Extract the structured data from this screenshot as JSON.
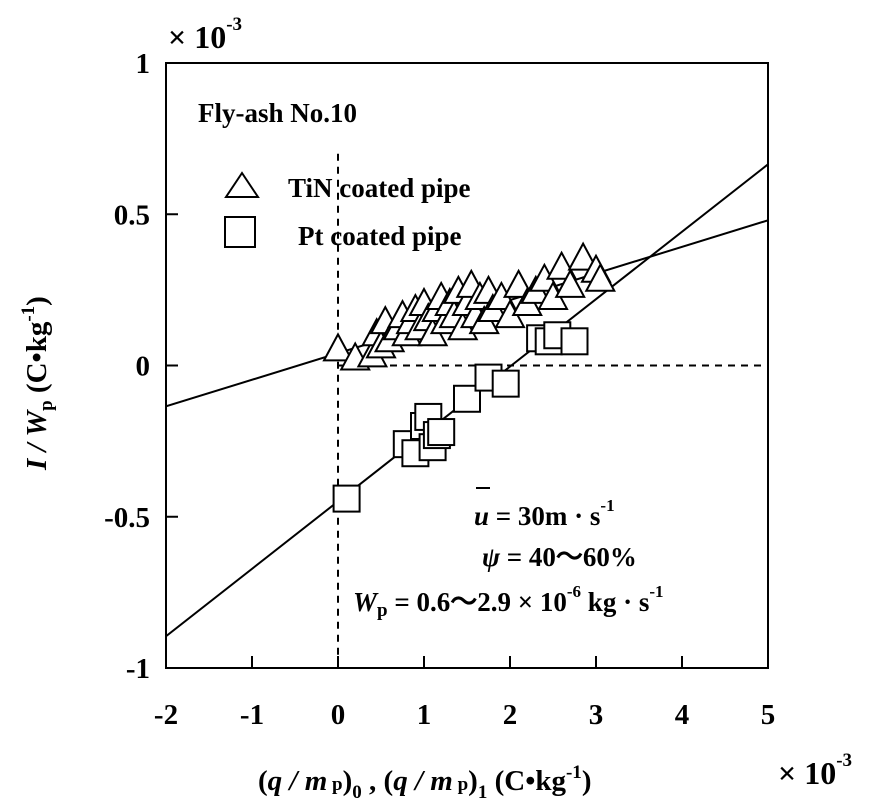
{
  "chart_data": {
    "type": "scatter",
    "annotation": "Fly-ash No.10",
    "xlabel": "(q / m p)0 ,  (q / m p)1    (C•kg-1)",
    "ylabel": "I / Wp   (C•kg-1)",
    "xlim": [
      -2,
      5
    ],
    "ylim": [
      -1,
      1
    ],
    "x_multiplier": "× 10-3",
    "y_multiplier": "× 10-3",
    "x_ticks": [
      "-2",
      "-1",
      "0",
      "1",
      "2",
      "3",
      "4",
      "5"
    ],
    "y_ticks": [
      "-1",
      "-0.5",
      "0",
      "0.5",
      "1"
    ],
    "conditions": [
      "u = 30m · s-1",
      "ψ = 40～60%",
      "Wp = 0.6～2.9 × 10-6 kg · s-1"
    ],
    "series": [
      {
        "name": "TiN coated pipe",
        "marker": "triangle",
        "points": [
          [
            0.0,
            0.05
          ],
          [
            0.2,
            0.02
          ],
          [
            0.4,
            0.03
          ],
          [
            0.45,
            0.1
          ],
          [
            0.5,
            0.06
          ],
          [
            0.55,
            0.14
          ],
          [
            0.6,
            0.08
          ],
          [
            0.7,
            0.12
          ],
          [
            0.75,
            0.16
          ],
          [
            0.8,
            0.1
          ],
          [
            0.85,
            0.14
          ],
          [
            0.9,
            0.18
          ],
          [
            0.95,
            0.12
          ],
          [
            1.0,
            0.2
          ],
          [
            1.05,
            0.15
          ],
          [
            1.1,
            0.1
          ],
          [
            1.15,
            0.18
          ],
          [
            1.2,
            0.22
          ],
          [
            1.25,
            0.14
          ],
          [
            1.3,
            0.2
          ],
          [
            1.35,
            0.16
          ],
          [
            1.4,
            0.24
          ],
          [
            1.45,
            0.12
          ],
          [
            1.5,
            0.2
          ],
          [
            1.55,
            0.26
          ],
          [
            1.6,
            0.16
          ],
          [
            1.65,
            0.22
          ],
          [
            1.7,
            0.14
          ],
          [
            1.75,
            0.24
          ],
          [
            1.8,
            0.18
          ],
          [
            1.9,
            0.22
          ],
          [
            2.0,
            0.16
          ],
          [
            2.1,
            0.26
          ],
          [
            2.2,
            0.2
          ],
          [
            2.3,
            0.24
          ],
          [
            2.4,
            0.28
          ],
          [
            2.5,
            0.22
          ],
          [
            2.6,
            0.32
          ],
          [
            2.7,
            0.26
          ],
          [
            2.85,
            0.35
          ],
          [
            3.0,
            0.31
          ],
          [
            3.05,
            0.28
          ]
        ]
      },
      {
        "name": "Pt coated pipe",
        "marker": "square",
        "points": [
          [
            0.1,
            -0.44
          ],
          [
            0.8,
            -0.26
          ],
          [
            0.9,
            -0.29
          ],
          [
            1.0,
            -0.2
          ],
          [
            1.05,
            -0.17
          ],
          [
            1.1,
            -0.27
          ],
          [
            1.15,
            -0.23
          ],
          [
            1.2,
            -0.22
          ],
          [
            1.5,
            -0.11
          ],
          [
            1.75,
            -0.04
          ],
          [
            1.95,
            -0.06
          ],
          [
            2.35,
            0.09
          ],
          [
            2.45,
            0.08
          ],
          [
            2.55,
            0.1
          ],
          [
            2.75,
            0.08
          ]
        ]
      }
    ],
    "fit_lines": [
      {
        "name": "TiN fit",
        "x": [
          -2,
          5
        ],
        "y": [
          -0.135,
          0.48
        ]
      },
      {
        "name": "Pt fit",
        "x": [
          -2,
          5
        ],
        "y": [
          -0.895,
          0.665
        ]
      }
    ],
    "reference_lines": {
      "x": 0,
      "y": 0,
      "style": "dashed"
    }
  }
}
